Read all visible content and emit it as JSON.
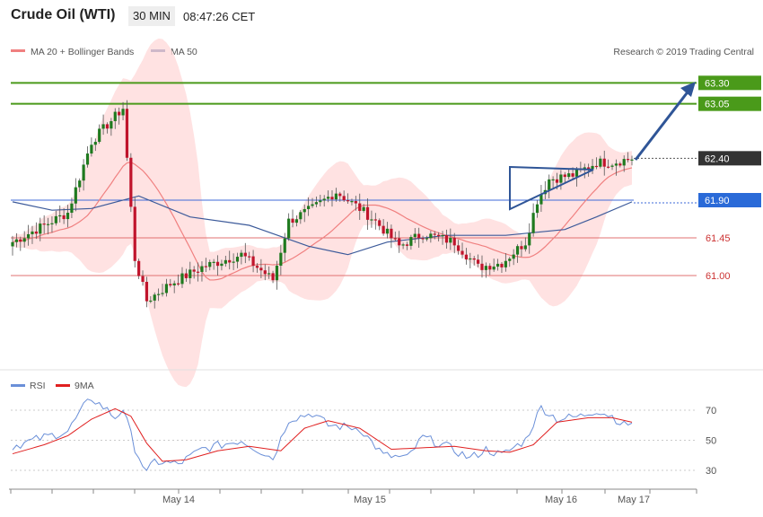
{
  "header": {
    "title": "Crude Oil (WTI)",
    "interval": "30 MIN",
    "clock": "08:47:26 CET"
  },
  "legend": {
    "ma20_label": "MA 20 + Bollinger Bands",
    "ma50_label": "MA 50",
    "credit": "Research © 2019 Trading Central"
  },
  "rsi_legend": {
    "rsi_label": "RSI",
    "ma_label": "9MA"
  },
  "colors": {
    "green": "#4a9a1a",
    "ma50": "#3c5a9a",
    "ma20": "#f08080",
    "band": "#ffd8d8",
    "bull": "#1f7a1f",
    "bear": "#c0142c",
    "current": "#333333",
    "blue_tag": "#2a6ad8",
    "arrow": "#2f5597",
    "rsi": "#6a8fd8",
    "rsi_ma": "#e02020"
  },
  "chart_data": [
    {
      "type": "candlestick",
      "title": "Crude Oil (WTI)",
      "interval": "30 MIN",
      "price_range": [
        60.5,
        63.8
      ],
      "current_price": "62.40",
      "levels": [
        {
          "value": 63.3,
          "label": "63.30",
          "kind": "resistance"
        },
        {
          "value": 63.05,
          "label": "63.05",
          "kind": "resistance"
        },
        {
          "value": 61.9,
          "label": "61.90",
          "kind": "pivot"
        },
        {
          "value": 61.45,
          "label": "61.45",
          "kind": "support"
        },
        {
          "value": 61.0,
          "label": "61.00",
          "kind": "support"
        }
      ],
      "x_labels": [
        "May 14",
        "May 15",
        "May 16",
        "May 17"
      ],
      "key_points": [
        {
          "x": 0,
          "close": 61.4
        },
        {
          "x": 14,
          "close": 61.75
        },
        {
          "x": 20,
          "close": 62.6
        },
        {
          "x": 28,
          "close": 63.0
        },
        {
          "x": 31,
          "close": 61.2
        },
        {
          "x": 34,
          "close": 60.7
        },
        {
          "x": 40,
          "close": 60.9
        },
        {
          "x": 48,
          "close": 61.1
        },
        {
          "x": 58,
          "close": 61.25
        },
        {
          "x": 66,
          "close": 60.95
        },
        {
          "x": 70,
          "close": 61.65
        },
        {
          "x": 76,
          "close": 61.8
        },
        {
          "x": 82,
          "close": 62.0
        },
        {
          "x": 88,
          "close": 61.8
        },
        {
          "x": 92,
          "close": 61.65
        },
        {
          "x": 98,
          "close": 61.35
        },
        {
          "x": 104,
          "close": 61.5
        },
        {
          "x": 112,
          "close": 61.4
        },
        {
          "x": 118,
          "close": 61.1
        },
        {
          "x": 124,
          "close": 61.15
        },
        {
          "x": 130,
          "close": 61.4
        },
        {
          "x": 133,
          "close": 61.9
        },
        {
          "x": 136,
          "close": 62.15
        },
        {
          "x": 142,
          "close": 62.2
        },
        {
          "x": 148,
          "close": 62.35
        },
        {
          "x": 152,
          "close": 62.35
        },
        {
          "x": 157,
          "close": 62.4
        }
      ],
      "ma50": [
        {
          "x": 0,
          "y": 61.88
        },
        {
          "x": 10,
          "y": 61.78
        },
        {
          "x": 20,
          "y": 61.8
        },
        {
          "x": 32,
          "y": 61.95
        },
        {
          "x": 45,
          "y": 61.7
        },
        {
          "x": 60,
          "y": 61.6
        },
        {
          "x": 75,
          "y": 61.35
        },
        {
          "x": 85,
          "y": 61.25
        },
        {
          "x": 95,
          "y": 61.4
        },
        {
          "x": 110,
          "y": 61.48
        },
        {
          "x": 125,
          "y": 61.48
        },
        {
          "x": 140,
          "y": 61.55
        },
        {
          "x": 148,
          "y": 61.7
        },
        {
          "x": 157,
          "y": 61.88
        }
      ]
    },
    {
      "type": "line",
      "title": "RSI",
      "y_ticks": [
        30,
        50,
        70
      ],
      "ylim": [
        20,
        85
      ],
      "series": [
        {
          "name": "RSI",
          "values": [
            {
              "x": 0,
              "y": 46
            },
            {
              "x": 8,
              "y": 52
            },
            {
              "x": 14,
              "y": 56
            },
            {
              "x": 18,
              "y": 72
            },
            {
              "x": 20,
              "y": 78
            },
            {
              "x": 24,
              "y": 70
            },
            {
              "x": 26,
              "y": 65
            },
            {
              "x": 28,
              "y": 71
            },
            {
              "x": 31,
              "y": 45
            },
            {
              "x": 34,
              "y": 28
            },
            {
              "x": 36,
              "y": 36
            },
            {
              "x": 42,
              "y": 34
            },
            {
              "x": 48,
              "y": 44
            },
            {
              "x": 58,
              "y": 50
            },
            {
              "x": 66,
              "y": 38
            },
            {
              "x": 70,
              "y": 64
            },
            {
              "x": 76,
              "y": 68
            },
            {
              "x": 80,
              "y": 60
            },
            {
              "x": 88,
              "y": 58
            },
            {
              "x": 94,
              "y": 40
            },
            {
              "x": 100,
              "y": 38
            },
            {
              "x": 104,
              "y": 52
            },
            {
              "x": 110,
              "y": 46
            },
            {
              "x": 116,
              "y": 38
            },
            {
              "x": 120,
              "y": 44
            },
            {
              "x": 124,
              "y": 40
            },
            {
              "x": 130,
              "y": 50
            },
            {
              "x": 134,
              "y": 72
            },
            {
              "x": 138,
              "y": 64
            },
            {
              "x": 144,
              "y": 66
            },
            {
              "x": 148,
              "y": 70
            },
            {
              "x": 152,
              "y": 66
            },
            {
              "x": 155,
              "y": 60
            },
            {
              "x": 157,
              "y": 62
            }
          ]
        },
        {
          "name": "9MA",
          "values": [
            {
              "x": 0,
              "y": 41
            },
            {
              "x": 8,
              "y": 47
            },
            {
              "x": 14,
              "y": 53
            },
            {
              "x": 20,
              "y": 64
            },
            {
              "x": 26,
              "y": 71
            },
            {
              "x": 30,
              "y": 66
            },
            {
              "x": 34,
              "y": 48
            },
            {
              "x": 38,
              "y": 36
            },
            {
              "x": 44,
              "y": 37
            },
            {
              "x": 52,
              "y": 43
            },
            {
              "x": 60,
              "y": 46
            },
            {
              "x": 68,
              "y": 43
            },
            {
              "x": 74,
              "y": 58
            },
            {
              "x": 80,
              "y": 63
            },
            {
              "x": 88,
              "y": 58
            },
            {
              "x": 96,
              "y": 44
            },
            {
              "x": 104,
              "y": 45
            },
            {
              "x": 112,
              "y": 46
            },
            {
              "x": 120,
              "y": 43
            },
            {
              "x": 126,
              "y": 42
            },
            {
              "x": 132,
              "y": 47
            },
            {
              "x": 138,
              "y": 62
            },
            {
              "x": 146,
              "y": 65
            },
            {
              "x": 152,
              "y": 65
            },
            {
              "x": 157,
              "y": 62
            }
          ]
        }
      ]
    }
  ]
}
